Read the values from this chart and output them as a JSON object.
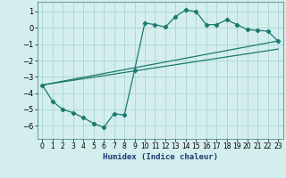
{
  "title": "",
  "xlabel": "Humidex (Indice chaleur)",
  "ylabel": "",
  "bg_color": "#d4eeee",
  "grid_color": "#aad4d4",
  "line_color": "#1a7a6e",
  "xlim": [
    -0.5,
    23.5
  ],
  "ylim": [
    -6.8,
    1.6
  ],
  "yticks": [
    -6,
    -5,
    -4,
    -3,
    -2,
    -1,
    0,
    1
  ],
  "xticks": [
    0,
    1,
    2,
    3,
    4,
    5,
    6,
    7,
    8,
    9,
    10,
    11,
    12,
    13,
    14,
    15,
    16,
    17,
    18,
    19,
    20,
    21,
    22,
    23
  ],
  "series1_x": [
    0,
    1,
    2,
    3,
    4,
    5,
    6,
    7,
    8,
    9,
    10,
    11,
    12,
    13,
    14,
    15,
    16,
    17,
    18,
    19,
    20,
    21,
    22,
    23
  ],
  "series1_y": [
    -3.5,
    -4.5,
    -5.0,
    -5.2,
    -5.5,
    -5.85,
    -6.1,
    -5.25,
    -5.35,
    -2.6,
    0.3,
    0.2,
    0.05,
    0.7,
    1.1,
    1.0,
    0.2,
    0.2,
    0.5,
    0.2,
    -0.1,
    -0.15,
    -0.2,
    -0.8
  ],
  "series2_x": [
    0,
    23
  ],
  "series2_y": [
    -3.5,
    -0.8
  ],
  "series3_x": [
    0,
    23
  ],
  "series3_y": [
    -3.5,
    -1.3
  ]
}
